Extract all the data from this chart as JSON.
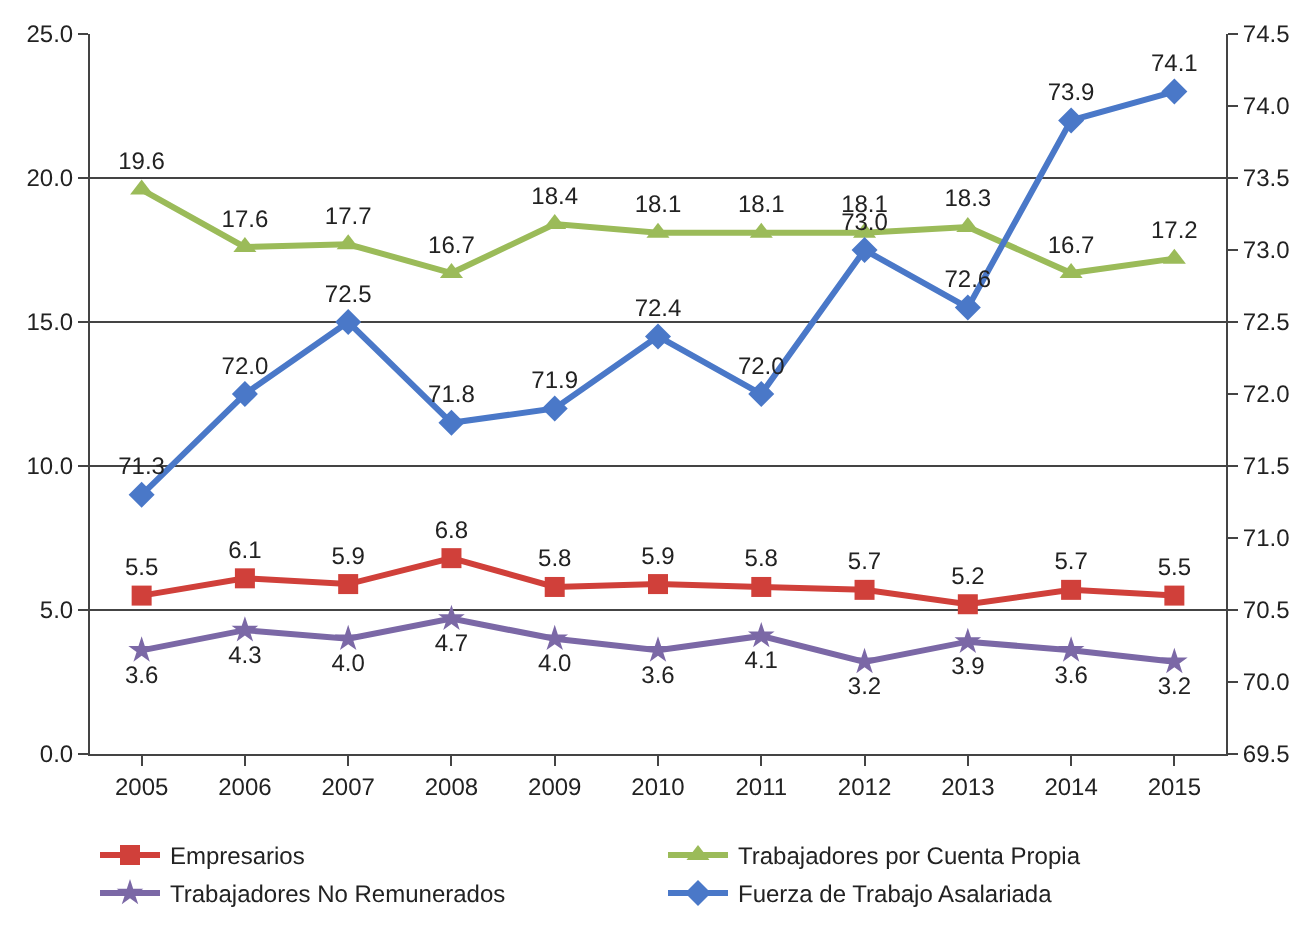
{
  "chart_data": {
    "type": "line",
    "categories": [
      "2005",
      "2006",
      "2007",
      "2008",
      "2009",
      "2010",
      "2011",
      "2012",
      "2013",
      "2014",
      "2015"
    ],
    "series": [
      {
        "name": "Empresarios",
        "color": "#d0403a",
        "marker": "square",
        "values": [
          5.5,
          6.1,
          5.9,
          6.8,
          5.8,
          5.9,
          5.8,
          5.7,
          5.2,
          5.7,
          5.5
        ],
        "value_labels": [
          "5.5",
          "6.1",
          "5.9",
          "6.8",
          "5.8",
          "5.9",
          "5.8",
          "5.7",
          "5.2",
          "5.7",
          "5.5"
        ]
      },
      {
        "name": "Trabajadores por Cuenta Propia",
        "color": "#9bbb59",
        "marker": "triangle",
        "values": [
          19.6,
          17.6,
          17.7,
          16.7,
          18.4,
          18.1,
          18.1,
          18.1,
          18.3,
          16.7,
          17.2
        ],
        "value_labels": [
          "19.6",
          "17.6",
          "17.7",
          "16.7",
          "18.4",
          "18.1",
          "18.1",
          "18.1",
          "18.3",
          "16.7",
          "17.2"
        ]
      },
      {
        "name": "Trabajadores No Remunerados",
        "color": "#7b68a6",
        "marker": "star",
        "values": [
          3.6,
          4.3,
          4.0,
          4.7,
          4.0,
          3.6,
          4.1,
          3.2,
          3.9,
          3.6,
          3.2
        ],
        "value_labels": [
          "3.6",
          "4.3",
          "4.0",
          "4.7",
          "4.0",
          "3.6",
          "4.1",
          "3.2",
          "3.9",
          "3.6",
          "3.2"
        ]
      },
      {
        "name": "Fuerza de Trabajo Asalariada",
        "color": "#4a78c8",
        "marker": "diamond",
        "axis": "y2",
        "values": [
          71.3,
          72.0,
          72.5,
          71.8,
          71.9,
          72.4,
          72.0,
          73.0,
          72.6,
          73.9,
          74.1
        ],
        "value_labels": [
          "71.3",
          "72.0",
          "72.5",
          "71.8",
          "71.9",
          "72.4",
          "72.0",
          "73.0",
          "72.6",
          "73.9",
          "74.1"
        ]
      }
    ],
    "ylim": [
      0,
      25
    ],
    "yticks": [
      {
        "value": 0,
        "label": "0.0"
      },
      {
        "value": 5,
        "label": "5.0"
      },
      {
        "value": 10,
        "label": "10.0"
      },
      {
        "value": 15,
        "label": "15.0"
      },
      {
        "value": 20,
        "label": "20.0"
      },
      {
        "value": 25,
        "label": "25.0"
      }
    ],
    "y2lim": [
      69.5,
      74.5
    ],
    "y2ticks": [
      69.5,
      {
        "value": 70,
        "label": "70.0"
      },
      70.5,
      {
        "value": 71,
        "label": "71.0"
      },
      71.5,
      {
        "value": 72,
        "label": "72.0"
      },
      72.5,
      {
        "value": 73,
        "label": "73.0"
      },
      73.5,
      {
        "value": 74,
        "label": "74.0"
      },
      74.5
    ],
    "grid": "y",
    "legend": "bottom",
    "line_style": "solid"
  }
}
